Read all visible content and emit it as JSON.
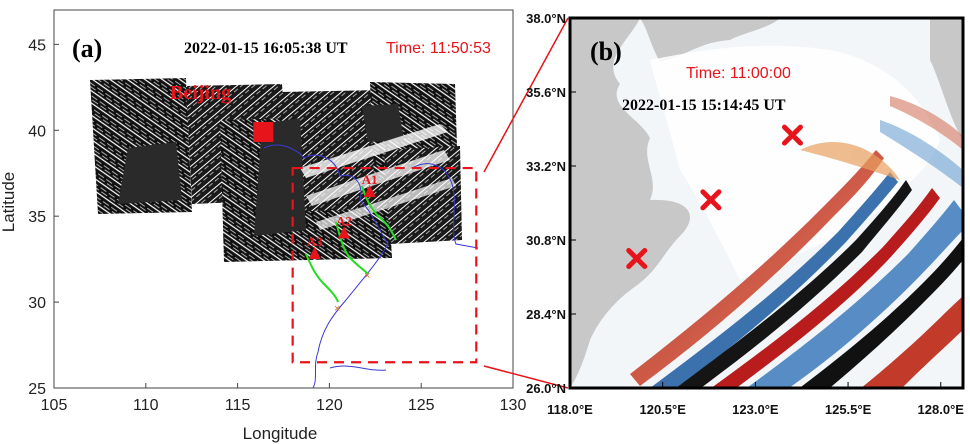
{
  "colors": {
    "accent": "#e8141b",
    "coast": "#3a3ad0",
    "track": "#22dd22",
    "panel_b_land": "#c8c8c8"
  },
  "panel_a": {
    "label": "(a)",
    "timestamp": "2022-01-15 16:05:38 UT",
    "time_label": "Time: 11:50:53",
    "city_label": "Beijing",
    "xlabel": "Longitude",
    "ylabel": "Latitude",
    "xticks": [
      "105",
      "110",
      "115",
      "120",
      "125",
      "130"
    ],
    "yticks": [
      "25",
      "30",
      "35",
      "40",
      "45"
    ]
  },
  "panel_b": {
    "label": "(b)",
    "time_label": "Time: 11:00:00",
    "timestamp": "2022-01-15 15:14:45 UT",
    "xticks": [
      "118.0°E",
      "120.5°E",
      "123.0°E",
      "125.5°E",
      "128.0°E"
    ],
    "yticks": [
      "38.0°N",
      "35.6°N",
      "33.2°N",
      "30.8°N",
      "28.4°N",
      "26.0°N"
    ]
  },
  "chart_data": [
    {
      "type": "scatter",
      "title": "(a)",
      "xlabel": "Longitude",
      "ylabel": "Latitude",
      "xlim": [
        105,
        130
      ],
      "ylim": [
        25,
        47
      ],
      "points": [
        {
          "name": "Beijing",
          "x": 116.4,
          "y": 39.9
        },
        {
          "name": "A1",
          "x": 122.2,
          "y": 36.4
        },
        {
          "name": "A2",
          "x": 120.8,
          "y": 34.0
        },
        {
          "name": "A3",
          "x": 119.2,
          "y": 32.8
        }
      ],
      "box": {
        "lon": [
          118,
          128
        ],
        "lat": [
          26.5,
          37.8
        ]
      }
    },
    {
      "type": "heatmap",
      "title": "(b)",
      "xlim": [
        118,
        128.6
      ],
      "ylim": [
        26,
        38
      ],
      "markers": [
        {
          "x": 119.8,
          "y": 30.2
        },
        {
          "x": 121.8,
          "y": 32.1
        },
        {
          "x": 124.0,
          "y": 34.2
        }
      ]
    }
  ]
}
